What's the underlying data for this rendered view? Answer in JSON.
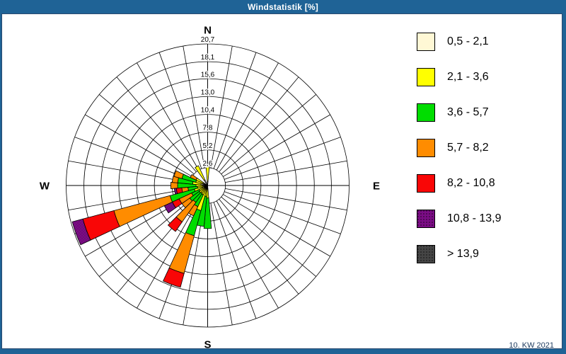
{
  "window": {
    "title": "Windstatistik [%]",
    "footer_date": "10. KW 2021"
  },
  "compass": {
    "north": "N",
    "east": "E",
    "south": "S",
    "west": "W"
  },
  "colors": {
    "titlebar": "#1F6396",
    "frame": "#1F6396",
    "grid": "#000000",
    "footer_text": "#1C3A5E"
  },
  "chart_data": {
    "type": "wind_rose",
    "title": "Windstatistik [%]",
    "units": "%",
    "radial_axis": {
      "max": 20.7,
      "ticks": [
        2.6,
        5.2,
        7.8,
        10.4,
        13.0,
        15.6,
        18.1,
        20.7
      ],
      "tick_labels": [
        "2,6",
        "5,2",
        "7,8",
        "10,4",
        "13,0",
        "15,6",
        "18,1",
        "20,7"
      ],
      "rings": 8,
      "sectors": 36,
      "grid": true
    },
    "speed_classes": [
      {
        "label": "0,5 - 2,1",
        "color": "#FFF8D5",
        "dotted": false
      },
      {
        "label": "2,1 - 3,6",
        "color": "#FFFF00",
        "dotted": false
      },
      {
        "label": "3,6 - 5,7",
        "color": "#00DD00",
        "dotted": false
      },
      {
        "label": "5,7 - 8,2",
        "color": "#FF8C00",
        "dotted": false
      },
      {
        "label": "8,2 - 10,8",
        "color": "#F90606",
        "dotted": false
      },
      {
        "label": "10,8 - 13,9",
        "color": "#7B0C85",
        "dotted": true
      },
      {
        "label": "> 13,9",
        "color": "#454545",
        "dotted": true
      }
    ],
    "bars": [
      {
        "direction_deg": 0,
        "cumulative_pct": [
          0.6,
          3.2,
          3.2,
          3.2,
          3.2,
          3.2,
          3.2
        ]
      },
      {
        "direction_deg": 180,
        "cumulative_pct": [
          0.5,
          1.8,
          6.3,
          6.3,
          6.3,
          6.3,
          6.3
        ]
      },
      {
        "direction_deg": 190,
        "cumulative_pct": [
          0.5,
          1.6,
          6.0,
          6.0,
          6.0,
          6.0,
          6.0
        ]
      },
      {
        "direction_deg": 200,
        "cumulative_pct": [
          0.6,
          3.8,
          7.6,
          13.3,
          15.4,
          15.4,
          15.4
        ]
      },
      {
        "direction_deg": 210,
        "cumulative_pct": [
          0.5,
          1.5,
          3.4,
          4.9,
          4.9,
          4.9,
          4.9
        ]
      },
      {
        "direction_deg": 220,
        "cumulative_pct": [
          0.5,
          1.4,
          3.0,
          6.5,
          8.2,
          8.2,
          8.2
        ]
      },
      {
        "direction_deg": 230,
        "cumulative_pct": [
          0.5,
          1.5,
          3.2,
          4.6,
          4.6,
          4.6,
          4.6
        ]
      },
      {
        "direction_deg": 240,
        "cumulative_pct": [
          0.5,
          1.4,
          2.6,
          4.6,
          5.7,
          7.0,
          7.0
        ]
      },
      {
        "direction_deg": 250,
        "cumulative_pct": [
          0.8,
          2.0,
          5.7,
          14.2,
          18.9,
          20.5,
          20.5
        ]
      },
      {
        "direction_deg": 260,
        "cumulative_pct": [
          0.5,
          1.5,
          2.9,
          3.8,
          4.6,
          4.9,
          4.9
        ]
      },
      {
        "direction_deg": 270,
        "cumulative_pct": [
          0.7,
          1.7,
          4.4,
          5.4,
          5.4,
          5.4,
          5.4
        ]
      },
      {
        "direction_deg": 280,
        "cumulative_pct": [
          1.0,
          2.2,
          4.4,
          5.2,
          5.2,
          5.2,
          5.2
        ]
      },
      {
        "direction_deg": 290,
        "cumulative_pct": [
          0.8,
          1.8,
          3.9,
          5.1,
          5.1,
          5.1,
          5.1
        ]
      },
      {
        "direction_deg": 300,
        "cumulative_pct": [
          0.7,
          1.9,
          1.9,
          2.8,
          2.8,
          2.8,
          2.8
        ]
      },
      {
        "direction_deg": 330,
        "cumulative_pct": [
          0.9,
          3.2,
          3.2,
          3.2,
          3.2,
          3.2,
          3.2
        ]
      }
    ],
    "legend_position": "right"
  }
}
